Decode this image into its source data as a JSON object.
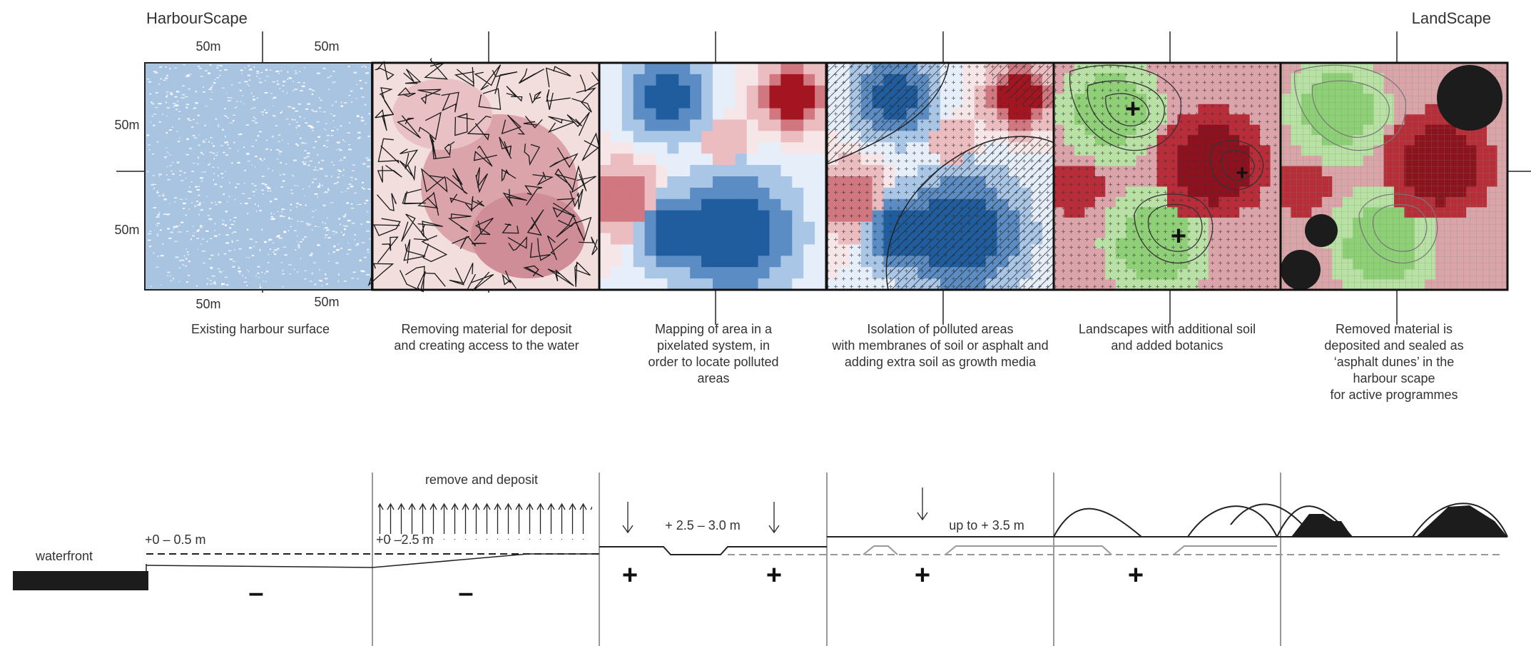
{
  "headers": {
    "left": "HarbourScape",
    "right": "LandScape"
  },
  "dimensions": {
    "top_left": "50m",
    "top_right": "50m",
    "side_top": "50m",
    "side_bottom": "50m",
    "bottom_left": "50m",
    "bottom_right": "50m"
  },
  "panels": [
    {
      "caption": [
        "Existing harbour surface"
      ]
    },
    {
      "caption": [
        "Removing material for deposit",
        "and creating access to the water"
      ]
    },
    {
      "caption": [
        "Mapping of area in a",
        "pixelated system, in",
        "order to locate polluted",
        "areas"
      ]
    },
    {
      "caption": [
        "Isolation of polluted areas",
        "with membranes of soil or asphalt and",
        "adding extra soil as growth media"
      ]
    },
    {
      "caption": [
        "Landscapes with additional soil",
        "and added botanics"
      ]
    },
    {
      "caption": [
        "Removed material is",
        "deposited and sealed as",
        "‘asphalt dunes’ in the",
        "harbour scape",
        "for active programmes"
      ]
    }
  ],
  "section": {
    "waterfront": "waterfront",
    "level_1": "+0 – 0.5 m",
    "level_2": "+0 –2.5 m",
    "remove": "remove and deposit",
    "level_3": "+ 2.5 – 3.0 m",
    "level_4": "up to + 3.5 m",
    "minus": "–",
    "plus": "+"
  },
  "colors": {
    "harbour_blue": "#a9c4e1",
    "pollution_red": "#a31621",
    "pink": "#e8b4b8",
    "deep_blue": "#1f5d9e",
    "light_blue": "#c8ddf0",
    "soil_green": "#b9e0a5",
    "asphalt": "#222222"
  }
}
